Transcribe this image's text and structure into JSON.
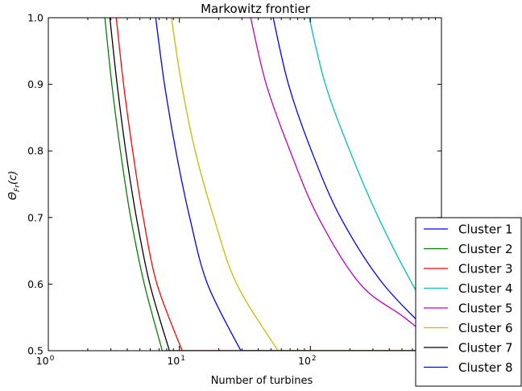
{
  "chart_data": {
    "type": "line",
    "title": "Markowitz frontier",
    "xlabel": "Number of turbines",
    "ylabel": "Θ_{Fr}(c)",
    "xscale": "log",
    "xlim": [
      1,
      1000
    ],
    "ylim": [
      0.5,
      1.0
    ],
    "x_ticks": [
      {
        "value": 1,
        "base": "10",
        "exp": "0"
      },
      {
        "value": 10,
        "base": "10",
        "exp": "1"
      },
      {
        "value": 100,
        "base": "10",
        "exp": "2"
      }
    ],
    "y_ticks": [
      "0.5",
      "0.6",
      "0.7",
      "0.8",
      "0.9",
      "1.0"
    ],
    "grid": false,
    "legend_position": "lower-right",
    "series": [
      {
        "name": "Cluster 1",
        "color": "#0000ff",
        "points": [
          [
            6.6,
            1.0
          ],
          [
            7.7,
            0.9
          ],
          [
            9.4,
            0.8
          ],
          [
            12.0,
            0.7
          ],
          [
            16.4,
            0.6
          ],
          [
            29.4,
            0.5
          ]
        ]
      },
      {
        "name": "Cluster 2",
        "color": "#008000",
        "points": [
          [
            2.7,
            1.0
          ],
          [
            3.05,
            0.9
          ],
          [
            3.55,
            0.8
          ],
          [
            4.25,
            0.7
          ],
          [
            5.4,
            0.6
          ],
          [
            7.4,
            0.5
          ]
        ]
      },
      {
        "name": "Cluster 3",
        "color": "#ff0000",
        "points": [
          [
            3.3,
            1.0
          ],
          [
            3.75,
            0.9
          ],
          [
            4.4,
            0.8
          ],
          [
            5.3,
            0.7
          ],
          [
            6.75,
            0.6
          ],
          [
            10.5,
            0.5
          ]
        ]
      },
      {
        "name": "Cluster 4",
        "color": "#00bfbf",
        "points": [
          [
            98,
            1.0
          ],
          [
            130,
            0.9
          ],
          [
            200,
            0.8
          ],
          [
            330,
            0.7
          ],
          [
            600,
            0.6
          ],
          [
            1000,
            0.53
          ]
        ]
      },
      {
        "name": "Cluster 5",
        "color": "#bf00bf",
        "points": [
          [
            35,
            1.0
          ],
          [
            46,
            0.9
          ],
          [
            70,
            0.8
          ],
          [
            115,
            0.7
          ],
          [
            240,
            0.6
          ],
          [
            520,
            0.55
          ],
          [
            1000,
            0.505
          ]
        ]
      },
      {
        "name": "Cluster 6",
        "color": "#bfbf00",
        "points": [
          [
            8.7,
            1.0
          ],
          [
            10.4,
            0.9
          ],
          [
            13.2,
            0.8
          ],
          [
            18.3,
            0.7
          ],
          [
            27.4,
            0.6
          ],
          [
            56.5,
            0.5
          ]
        ]
      },
      {
        "name": "Cluster 7",
        "color": "#000000",
        "points": [
          [
            2.95,
            1.0
          ],
          [
            3.35,
            0.9
          ],
          [
            3.9,
            0.8
          ],
          [
            4.7,
            0.7
          ],
          [
            5.95,
            0.6
          ],
          [
            8.4,
            0.5
          ]
        ]
      },
      {
        "name": "Cluster 8",
        "color": "#0000ff",
        "points": [
          [
            52,
            1.0
          ],
          [
            68,
            0.9
          ],
          [
            102,
            0.8
          ],
          [
            170,
            0.7
          ],
          [
            360,
            0.6
          ],
          [
            1000,
            0.51
          ]
        ]
      }
    ]
  }
}
